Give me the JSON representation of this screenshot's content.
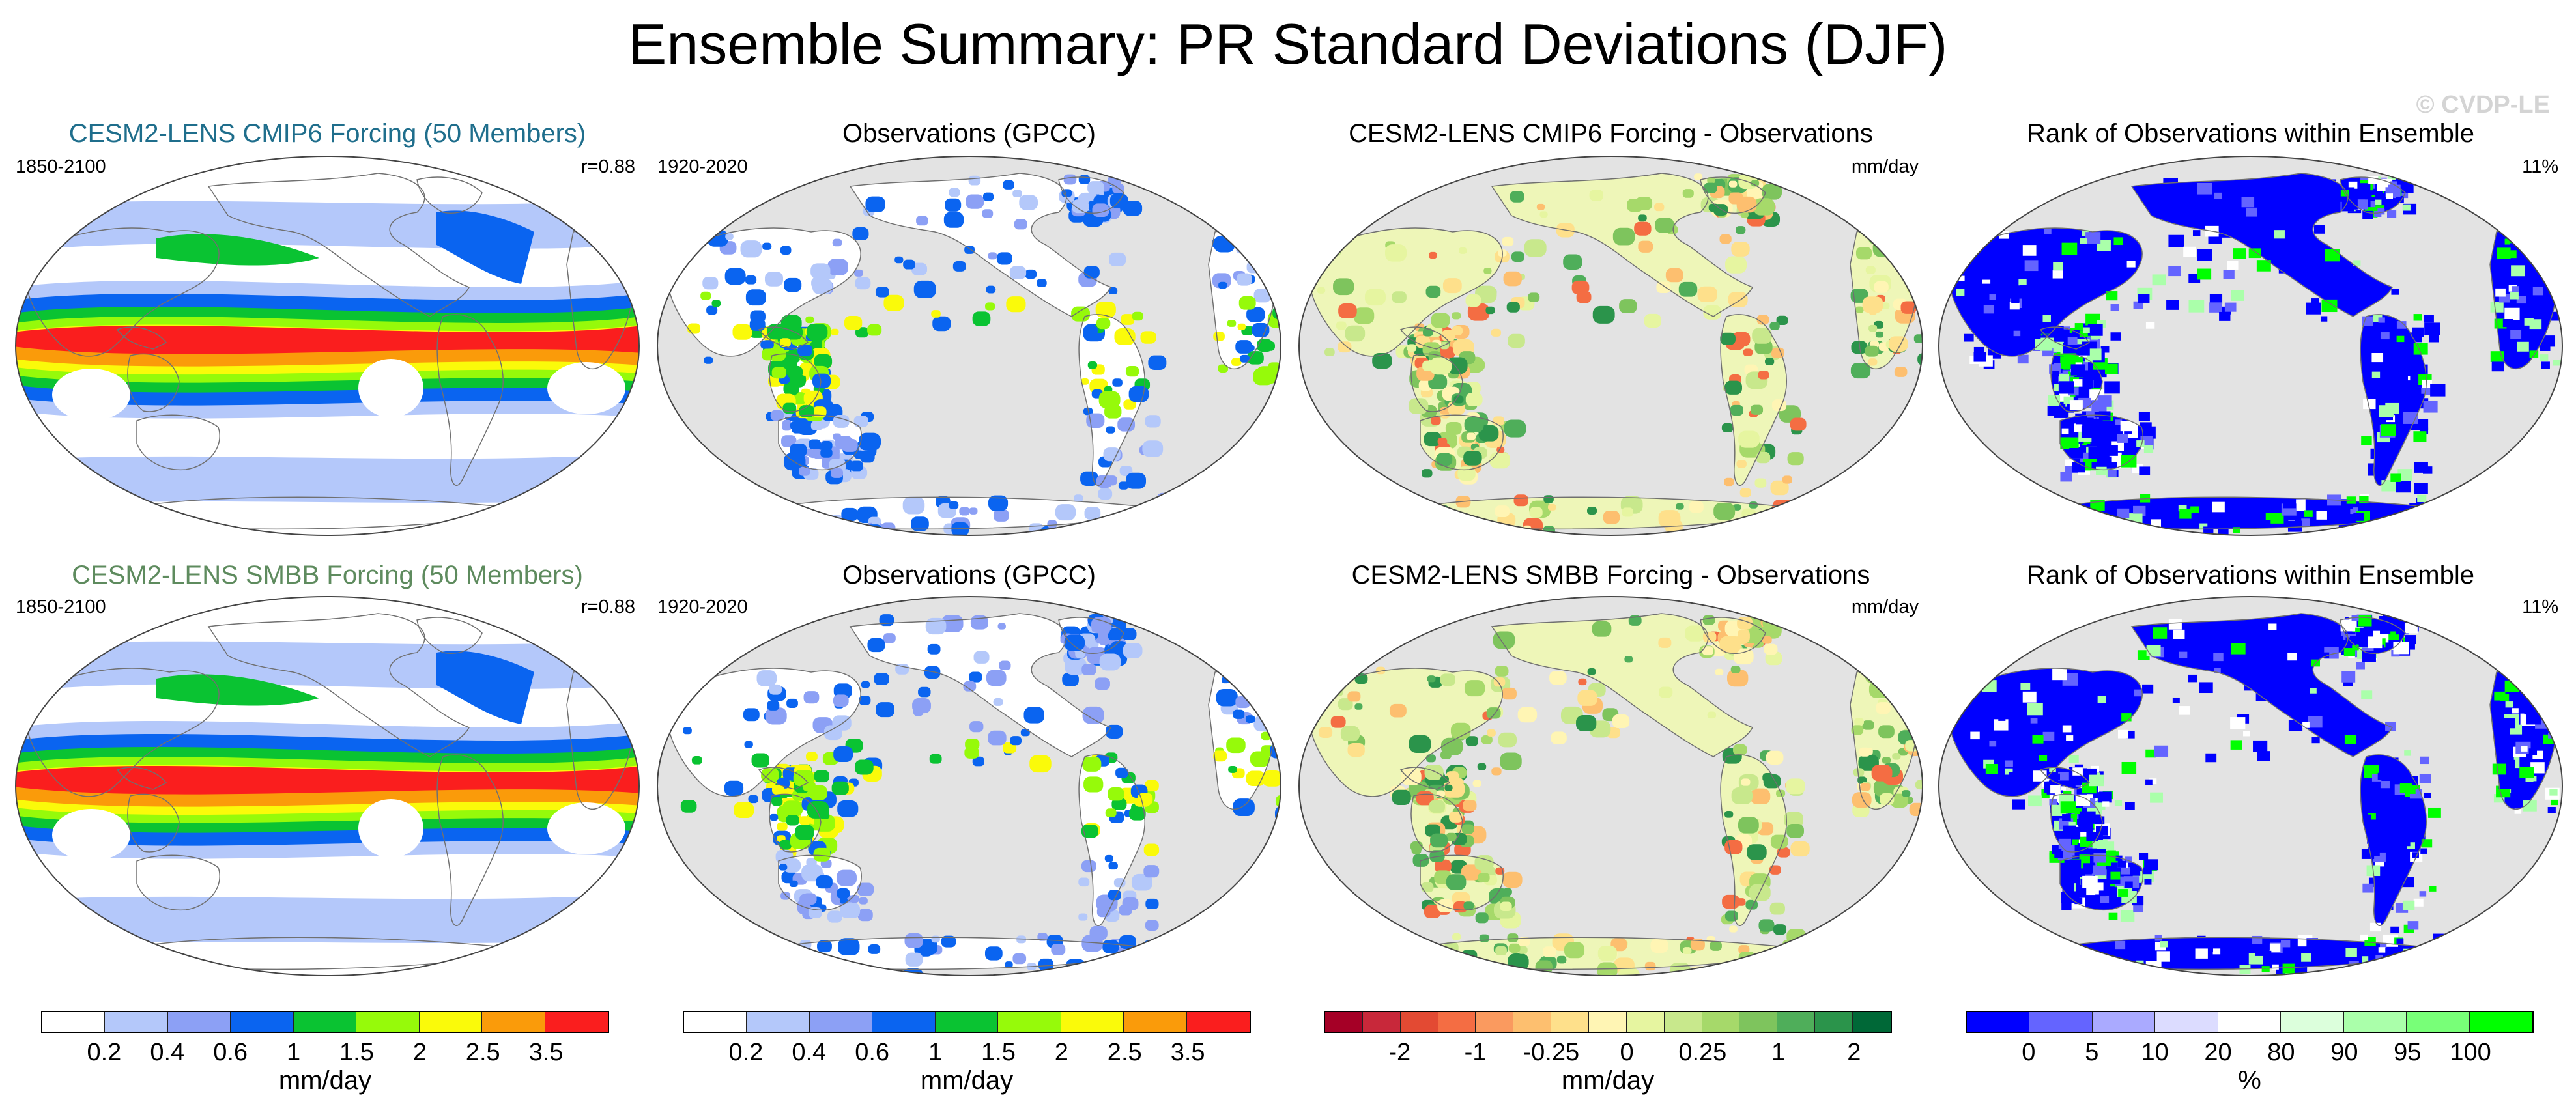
{
  "title": "Ensemble Summary: PR Standard Deviations (DJF)",
  "watermark": "© CVDP-LE",
  "rows": [
    {
      "panels": [
        {
          "title": "CESM2-LENS CMIP6 Forcing (50 Members)",
          "title_color": "#1f6e8c",
          "left_label": "1850-2100",
          "right_label": "r=0.88",
          "map_type": "model"
        },
        {
          "title": "Observations (GPCC)",
          "title_color": "#000000",
          "left_label": "1920-2020",
          "right_label": "",
          "map_type": "obs"
        },
        {
          "title": "CESM2-LENS CMIP6 Forcing - Observations",
          "title_color": "#000000",
          "left_label": "",
          "right_label": "mm/day",
          "map_type": "diff"
        },
        {
          "title": "Rank of Observations within Ensemble",
          "title_color": "#000000",
          "left_label": "",
          "right_label": "11%",
          "map_type": "rank"
        }
      ]
    },
    {
      "panels": [
        {
          "title": "CESM2-LENS SMBB Forcing (50 Members)",
          "title_color": "#5e8b5e",
          "left_label": "1850-2100",
          "right_label": "r=0.88",
          "map_type": "model"
        },
        {
          "title": "Observations (GPCC)",
          "title_color": "#000000",
          "left_label": "1920-2020",
          "right_label": "",
          "map_type": "obs"
        },
        {
          "title": "CESM2-LENS SMBB Forcing - Observations",
          "title_color": "#000000",
          "left_label": "",
          "right_label": "mm/day",
          "map_type": "diff"
        },
        {
          "title": "Rank of Observations within Ensemble",
          "title_color": "#000000",
          "left_label": "",
          "right_label": "11%",
          "map_type": "rank"
        }
      ]
    }
  ],
  "colorbars": [
    {
      "colors": [
        "#ffffff",
        "#b4c8fa",
        "#8ca0f5",
        "#0a64f0",
        "#0ac332",
        "#96fa0a",
        "#fafa0a",
        "#fa9b0a",
        "#fa1e1e"
      ],
      "labels": [
        "0.2",
        "0.4",
        "0.6",
        "1",
        "1.5",
        "2",
        "2.5",
        "3.5"
      ],
      "unit": "mm/day"
    },
    {
      "colors": [
        "#ffffff",
        "#b4c8fa",
        "#8ca0f5",
        "#0a64f0",
        "#0ac332",
        "#96fa0a",
        "#fafa0a",
        "#fa9b0a",
        "#fa1e1e"
      ],
      "labels": [
        "0.2",
        "0.4",
        "0.6",
        "1",
        "1.5",
        "2",
        "2.5",
        "3.5"
      ],
      "unit": "mm/day"
    },
    {
      "colors": [
        "#a50026",
        "#c8283a",
        "#e34a33",
        "#f46d43",
        "#fa9a5f",
        "#fdbf6f",
        "#fee08b",
        "#fff5b4",
        "#e6f5a0",
        "#c8e88c",
        "#a6d96a",
        "#7ec45d",
        "#4fae5a",
        "#2b944b",
        "#006837"
      ],
      "labels": [
        "-2",
        "-1",
        "-0.25",
        "0",
        "0.25",
        "1",
        "2"
      ],
      "unit": "mm/day"
    },
    {
      "colors": [
        "#0000ff",
        "#6464ff",
        "#aaaaff",
        "#dcdcff",
        "#ffffff",
        "#dcffdc",
        "#aaffaa",
        "#78ff78",
        "#00ff00"
      ],
      "labels": [
        "0",
        "5",
        "10",
        "20",
        "80",
        "90",
        "95",
        "100"
      ],
      "unit": "%"
    }
  ],
  "chart_data": [
    {
      "type": "heatmap",
      "title": "CESM2-LENS CMIP6 Forcing (50 Members)",
      "period": "1850-2100",
      "pattern_correlation": 0.88,
      "units": "mm/day",
      "levels": [
        0.2,
        0.4,
        0.6,
        1,
        1.5,
        2,
        2.5,
        3.5
      ],
      "projection": "Robinson, Pacific-centered"
    },
    {
      "type": "heatmap",
      "title": "Observations (GPCC)",
      "period": "1920-2020",
      "units": "mm/day",
      "levels": [
        0.2,
        0.4,
        0.6,
        1,
        1.5,
        2,
        2.5,
        3.5
      ],
      "coverage": "land only"
    },
    {
      "type": "heatmap",
      "title": "CESM2-LENS CMIP6 Forcing - Observations",
      "units": "mm/day",
      "levels": [
        -2,
        -1,
        -0.25,
        0,
        0.25,
        1,
        2
      ]
    },
    {
      "type": "heatmap",
      "title": "Rank of Observations within Ensemble",
      "summary_value": "11%",
      "units": "%",
      "levels": [
        0,
        5,
        10,
        20,
        80,
        90,
        95,
        100
      ]
    },
    {
      "type": "heatmap",
      "title": "CESM2-LENS SMBB Forcing (50 Members)",
      "period": "1850-2100",
      "pattern_correlation": 0.88,
      "units": "mm/day",
      "levels": [
        0.2,
        0.4,
        0.6,
        1,
        1.5,
        2,
        2.5,
        3.5
      ]
    },
    {
      "type": "heatmap",
      "title": "Observations (GPCC)",
      "period": "1920-2020",
      "units": "mm/day",
      "levels": [
        0.2,
        0.4,
        0.6,
        1,
        1.5,
        2,
        2.5,
        3.5
      ],
      "coverage": "land only"
    },
    {
      "type": "heatmap",
      "title": "CESM2-LENS SMBB Forcing - Observations",
      "units": "mm/day",
      "levels": [
        -2,
        -1,
        -0.25,
        0,
        0.25,
        1,
        2
      ]
    },
    {
      "type": "heatmap",
      "title": "Rank of Observations within Ensemble",
      "summary_value": "11%",
      "units": "%",
      "levels": [
        0,
        5,
        10,
        20,
        80,
        90,
        95,
        100
      ]
    }
  ]
}
